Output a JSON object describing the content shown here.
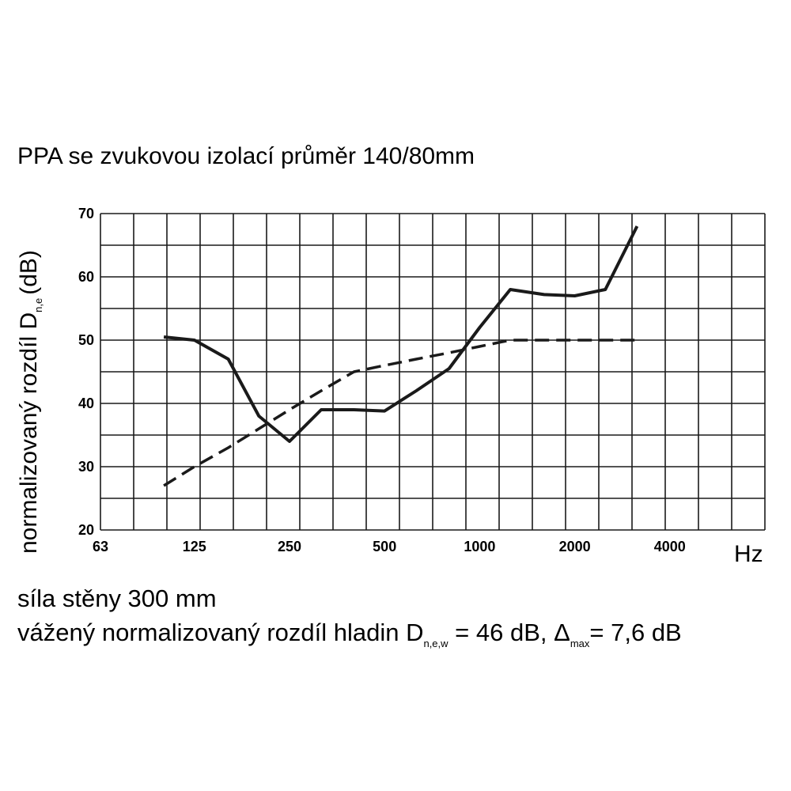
{
  "chart_data": {
    "type": "line",
    "title": "PPA se zvukovou izolací průměr 140/80mm",
    "ylabel": {
      "main": "normalizovaný rozdíl D",
      "sub": "n,e",
      "tail": "(dB)"
    },
    "xunit": "Hz",
    "xscale": "log",
    "xlim": [
      63,
      8000
    ],
    "ylim": [
      20,
      70
    ],
    "xticks": [
      63,
      125,
      250,
      500,
      1000,
      2000,
      4000
    ],
    "yticks": [
      20,
      30,
      40,
      50,
      60,
      70
    ],
    "grid": true,
    "series": [
      {
        "style": "solid",
        "x": [
          100,
          125,
          160,
          200,
          250,
          315,
          400,
          500,
          630,
          800,
          1000,
          1250,
          1600,
          2000,
          2500,
          3150
        ],
        "y": [
          50.5,
          50,
          47,
          38,
          34,
          39,
          39,
          38.8,
          42,
          45.5,
          52,
          58,
          57.2,
          57,
          58,
          68
        ]
      },
      {
        "style": "dashed",
        "x": [
          100,
          125,
          160,
          200,
          250,
          315,
          400,
          500,
          630,
          800,
          1000,
          1250,
          1600,
          2000,
          2500,
          3150
        ],
        "y": [
          27,
          30,
          33,
          36,
          39,
          42,
          45,
          46,
          47,
          48,
          49,
          50,
          50,
          50,
          50,
          50
        ]
      }
    ]
  },
  "notes": {
    "line1": "síla stěny 300 mm",
    "line2": {
      "pre": "vážený normalizovaný rozdíl hladin D",
      "sub1": "n,e,w",
      "mid": " = 46 dB, Δ",
      "sub2": "max",
      "post": "= 7,6 dB"
    }
  }
}
